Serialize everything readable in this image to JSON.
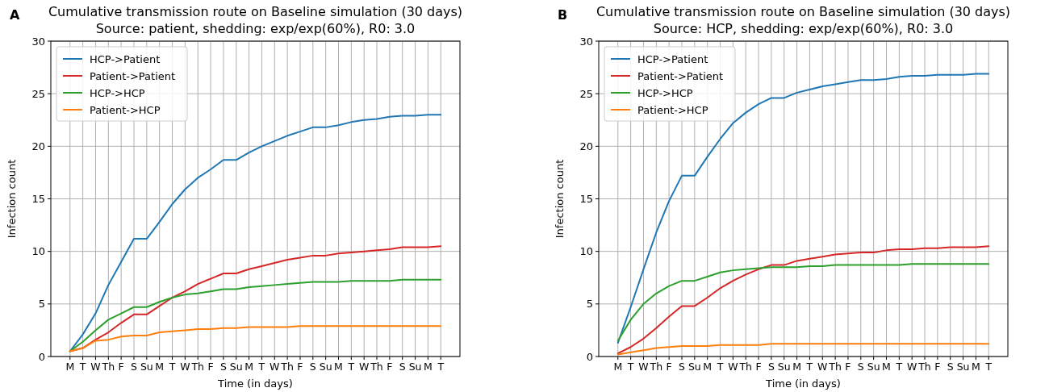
{
  "chart_data": [
    {
      "type": "line",
      "title": "Cumulative transmission route on Baseline simulation (30 days)",
      "subtitle": "Source: patient, shedding: exp/exp(60%), R0: 3.0",
      "xlabel": "Time (in days)",
      "ylabel": "Infection count",
      "annotations": [
        "A"
      ],
      "categories": [
        "M",
        "T",
        "W",
        "Th",
        "F",
        "S",
        "Su",
        "M",
        "T",
        "W",
        "Th",
        "F",
        "S",
        "Su",
        "M",
        "T",
        "W",
        "Th",
        "F",
        "S",
        "Su",
        "M",
        "T",
        "W",
        "Th",
        "F",
        "S",
        "Su",
        "M",
        "T"
      ],
      "ylim": [
        0,
        30
      ],
      "yticks": [
        0,
        5,
        10,
        15,
        20,
        25,
        30
      ],
      "grid": true,
      "legend": "top left",
      "line_style": "solid",
      "series": [
        {
          "name": "HCP->Patient",
          "color": "#1f77b4",
          "values": [
            0.5,
            2.1,
            4.1,
            6.8,
            9.0,
            11.2,
            11.2,
            12.8,
            14.5,
            15.9,
            17.0,
            17.8,
            18.7,
            18.7,
            19.4,
            20.0,
            20.5,
            21.0,
            21.4,
            21.8,
            21.8,
            22.0,
            22.3,
            22.5,
            22.6,
            22.8,
            22.9,
            22.9,
            23.0,
            23.0
          ]
        },
        {
          "name": "Patient->Patient",
          "color": "#d62728",
          "values": [
            0.5,
            0.8,
            1.6,
            2.3,
            3.2,
            4.0,
            4.0,
            4.8,
            5.6,
            6.2,
            6.9,
            7.4,
            7.9,
            7.9,
            8.3,
            8.6,
            8.9,
            9.2,
            9.4,
            9.6,
            9.6,
            9.8,
            9.9,
            10.0,
            10.1,
            10.2,
            10.4,
            10.4,
            10.4,
            10.5
          ]
        },
        {
          "name": "HCP->HCP",
          "color": "#2ca02c",
          "values": [
            0.5,
            1.4,
            2.5,
            3.5,
            4.1,
            4.7,
            4.7,
            5.2,
            5.6,
            5.9,
            6.0,
            6.2,
            6.4,
            6.4,
            6.6,
            6.7,
            6.8,
            6.9,
            7.0,
            7.1,
            7.1,
            7.1,
            7.2,
            7.2,
            7.2,
            7.2,
            7.3,
            7.3,
            7.3,
            7.3
          ]
        },
        {
          "name": "Patient->HCP",
          "color": "#ff7f0e",
          "values": [
            0.5,
            0.8,
            1.5,
            1.6,
            1.9,
            2.0,
            2.0,
            2.3,
            2.4,
            2.5,
            2.6,
            2.6,
            2.7,
            2.7,
            2.8,
            2.8,
            2.8,
            2.8,
            2.9,
            2.9,
            2.9,
            2.9,
            2.9,
            2.9,
            2.9,
            2.9,
            2.9,
            2.9,
            2.9,
            2.9
          ]
        }
      ]
    },
    {
      "type": "line",
      "title": "Cumulative transmission route on Baseline simulation (30 days)",
      "subtitle": "Source: HCP, shedding: exp/exp(60%), R0: 3.0",
      "xlabel": "Time (in days)",
      "ylabel": "Infection count",
      "annotations": [
        "B"
      ],
      "categories": [
        "M",
        "T",
        "W",
        "Th",
        "F",
        "S",
        "Su",
        "M",
        "T",
        "W",
        "Th",
        "F",
        "S",
        "Su",
        "M",
        "T",
        "W",
        "Th",
        "F",
        "S",
        "Su",
        "M",
        "T",
        "W",
        "Th",
        "F",
        "S",
        "Su",
        "M",
        "T"
      ],
      "ylim": [
        0,
        30
      ],
      "yticks": [
        0,
        5,
        10,
        15,
        20,
        25,
        30
      ],
      "grid": true,
      "legend": "top left",
      "line_style": "solid",
      "series": [
        {
          "name": "HCP->Patient",
          "color": "#1f77b4",
          "values": [
            1.3,
            4.7,
            8.3,
            11.8,
            14.8,
            17.2,
            17.2,
            19.0,
            20.7,
            22.2,
            23.2,
            24.0,
            24.6,
            24.6,
            25.1,
            25.4,
            25.7,
            25.9,
            26.1,
            26.3,
            26.3,
            26.4,
            26.6,
            26.7,
            26.7,
            26.8,
            26.8,
            26.8,
            26.9,
            26.9
          ]
        },
        {
          "name": "Patient->Patient",
          "color": "#d62728",
          "values": [
            0.3,
            0.9,
            1.7,
            2.7,
            3.8,
            4.8,
            4.8,
            5.6,
            6.5,
            7.2,
            7.8,
            8.3,
            8.7,
            8.7,
            9.1,
            9.3,
            9.5,
            9.7,
            9.8,
            9.9,
            9.9,
            10.1,
            10.2,
            10.2,
            10.3,
            10.3,
            10.4,
            10.4,
            10.4,
            10.5
          ]
        },
        {
          "name": "HCP->HCP",
          "color": "#2ca02c",
          "values": [
            1.5,
            3.5,
            5.0,
            6.0,
            6.7,
            7.2,
            7.2,
            7.6,
            8.0,
            8.2,
            8.3,
            8.4,
            8.5,
            8.5,
            8.5,
            8.6,
            8.6,
            8.7,
            8.7,
            8.7,
            8.7,
            8.7,
            8.7,
            8.8,
            8.8,
            8.8,
            8.8,
            8.8,
            8.8,
            8.8
          ]
        },
        {
          "name": "Patient->HCP",
          "color": "#ff7f0e",
          "values": [
            0.2,
            0.4,
            0.6,
            0.8,
            0.9,
            1.0,
            1.0,
            1.0,
            1.1,
            1.1,
            1.1,
            1.1,
            1.2,
            1.2,
            1.2,
            1.2,
            1.2,
            1.2,
            1.2,
            1.2,
            1.2,
            1.2,
            1.2,
            1.2,
            1.2,
            1.2,
            1.2,
            1.2,
            1.2,
            1.2
          ]
        }
      ]
    }
  ]
}
